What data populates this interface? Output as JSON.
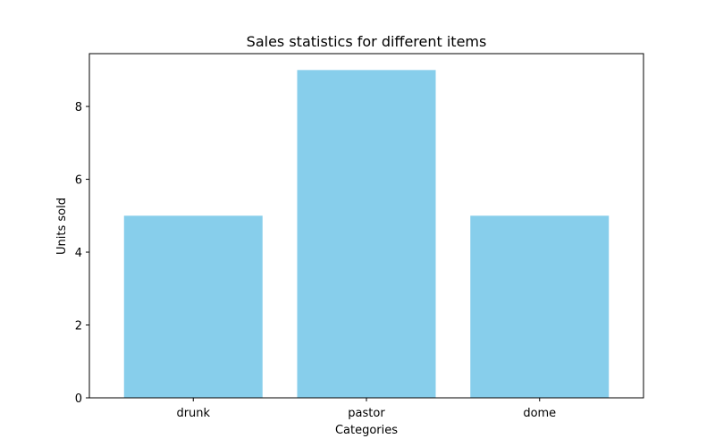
{
  "chart_data": {
    "type": "bar",
    "title": "Sales statistics for different items",
    "xlabel": "Categories",
    "ylabel": "Units sold",
    "categories": [
      "drunk",
      "pastor",
      "dome"
    ],
    "values": [
      5,
      9,
      5
    ],
    "ylim": [
      0,
      9.45
    ],
    "yticks": [
      0,
      2,
      4,
      6,
      8
    ],
    "ytick_labels": [
      "0",
      "2",
      "4",
      "6",
      "8"
    ],
    "bar_color": "#87ceeb",
    "grid": false,
    "legend": "none"
  }
}
